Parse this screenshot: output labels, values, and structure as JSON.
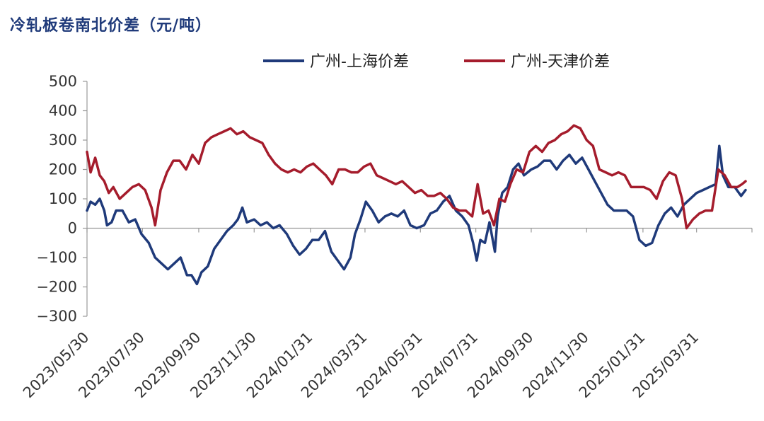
{
  "chart_data": {
    "type": "line",
    "title": "冷轧板卷南北价差（元/吨）",
    "xlabel": "",
    "ylabel": "",
    "ylim": [
      -300,
      500
    ],
    "yticks": [
      500,
      400,
      300,
      200,
      100,
      0,
      -100,
      -200,
      -300
    ],
    "x_start": "2023/05/30",
    "x_end": "2025/05/31",
    "xticks": [
      "2023/05/30",
      "2023/07/30",
      "2023/09/30",
      "2023/11/30",
      "2024/01/31",
      "2024/03/31",
      "2024/05/31",
      "2024/07/31",
      "2024/09/30",
      "2024/11/30",
      "2025/01/31",
      "2025/03/31"
    ],
    "grid": false,
    "legend_position": "top",
    "series": [
      {
        "name": "广州-上海价差",
        "color": "#1f3a7a",
        "points": [
          [
            "2023/05/30",
            60
          ],
          [
            "2023/06/03",
            90
          ],
          [
            "2023/06/08",
            80
          ],
          [
            "2023/06/13",
            100
          ],
          [
            "2023/06/18",
            60
          ],
          [
            "2023/06/21",
            10
          ],
          [
            "2023/06/26",
            20
          ],
          [
            "2023/07/01",
            60
          ],
          [
            "2023/07/08",
            60
          ],
          [
            "2023/07/15",
            20
          ],
          [
            "2023/07/22",
            30
          ],
          [
            "2023/07/29",
            -20
          ],
          [
            "2023/08/06",
            -50
          ],
          [
            "2023/08/13",
            -100
          ],
          [
            "2023/08/20",
            -120
          ],
          [
            "2023/08/27",
            -140
          ],
          [
            "2023/09/03",
            -120
          ],
          [
            "2023/09/10",
            -100
          ],
          [
            "2023/09/17",
            -160
          ],
          [
            "2023/09/22",
            -160
          ],
          [
            "2023/09/28",
            -190
          ],
          [
            "2023/10/03",
            -150
          ],
          [
            "2023/10/10",
            -130
          ],
          [
            "2023/10/17",
            -70
          ],
          [
            "2023/10/24",
            -40
          ],
          [
            "2023/10/31",
            -10
          ],
          [
            "2023/11/07",
            10
          ],
          [
            "2023/11/12",
            30
          ],
          [
            "2023/11/17",
            70
          ],
          [
            "2023/11/22",
            20
          ],
          [
            "2023/11/30",
            30
          ],
          [
            "2023/12/07",
            10
          ],
          [
            "2023/12/14",
            20
          ],
          [
            "2023/12/21",
            0
          ],
          [
            "2023/12/28",
            10
          ],
          [
            "2024/01/05",
            -20
          ],
          [
            "2024/01/12",
            -60
          ],
          [
            "2024/01/19",
            -90
          ],
          [
            "2024/01/26",
            -70
          ],
          [
            "2024/02/02",
            -40
          ],
          [
            "2024/02/09",
            -40
          ],
          [
            "2024/02/16",
            -10
          ],
          [
            "2024/02/23",
            -80
          ],
          [
            "2024/03/01",
            -110
          ],
          [
            "2024/03/08",
            -140
          ],
          [
            "2024/03/15",
            -100
          ],
          [
            "2024/03/20",
            -20
          ],
          [
            "2024/03/26",
            30
          ],
          [
            "2024/04/01",
            90
          ],
          [
            "2024/04/08",
            60
          ],
          [
            "2024/04/15",
            20
          ],
          [
            "2024/04/22",
            40
          ],
          [
            "2024/04/29",
            50
          ],
          [
            "2024/05/06",
            40
          ],
          [
            "2024/05/13",
            60
          ],
          [
            "2024/05/20",
            10
          ],
          [
            "2024/05/27",
            0
          ],
          [
            "2024/06/04",
            10
          ],
          [
            "2024/06/11",
            50
          ],
          [
            "2024/06/18",
            60
          ],
          [
            "2024/06/25",
            90
          ],
          [
            "2024/07/02",
            110
          ],
          [
            "2024/07/09",
            60
          ],
          [
            "2024/07/16",
            40
          ],
          [
            "2024/07/23",
            10
          ],
          [
            "2024/07/28",
            -50
          ],
          [
            "2024/08/01",
            -110
          ],
          [
            "2024/08/05",
            -40
          ],
          [
            "2024/08/10",
            -50
          ],
          [
            "2024/08/15",
            20
          ],
          [
            "2024/08/21",
            -80
          ],
          [
            "2024/08/24",
            40
          ],
          [
            "2024/08/29",
            120
          ],
          [
            "2024/09/04",
            140
          ],
          [
            "2024/09/10",
            200
          ],
          [
            "2024/09/16",
            220
          ],
          [
            "2024/09/22",
            180
          ],
          [
            "2024/09/30",
            200
          ],
          [
            "2024/10/07",
            210
          ],
          [
            "2024/10/14",
            230
          ],
          [
            "2024/10/21",
            230
          ],
          [
            "2024/10/28",
            200
          ],
          [
            "2024/11/04",
            230
          ],
          [
            "2024/11/11",
            250
          ],
          [
            "2024/11/18",
            220
          ],
          [
            "2024/11/25",
            240
          ],
          [
            "2024/12/02",
            200
          ],
          [
            "2024/12/09",
            160
          ],
          [
            "2024/12/16",
            120
          ],
          [
            "2024/12/23",
            80
          ],
          [
            "2024/12/30",
            60
          ],
          [
            "2025/01/06",
            60
          ],
          [
            "2025/01/13",
            60
          ],
          [
            "2025/01/20",
            40
          ],
          [
            "2025/01/27",
            -40
          ],
          [
            "2025/02/03",
            -60
          ],
          [
            "2025/02/10",
            -50
          ],
          [
            "2025/02/17",
            10
          ],
          [
            "2025/02/24",
            50
          ],
          [
            "2025/03/03",
            70
          ],
          [
            "2025/03/10",
            40
          ],
          [
            "2025/03/17",
            80
          ],
          [
            "2025/03/24",
            100
          ],
          [
            "2025/03/31",
            120
          ],
          [
            "2025/04/07",
            130
          ],
          [
            "2025/04/14",
            140
          ],
          [
            "2025/04/21",
            150
          ],
          [
            "2025/04/25",
            280
          ],
          [
            "2025/04/29",
            180
          ],
          [
            "2025/05/05",
            140
          ],
          [
            "2025/05/12",
            140
          ],
          [
            "2025/05/19",
            110
          ],
          [
            "2025/05/24",
            130
          ]
        ]
      },
      {
        "name": "广州-天津价差",
        "color": "#a51c2c",
        "points": [
          [
            "2023/05/30",
            260
          ],
          [
            "2023/06/03",
            190
          ],
          [
            "2023/06/08",
            240
          ],
          [
            "2023/06/13",
            180
          ],
          [
            "2023/06/18",
            160
          ],
          [
            "2023/06/23",
            120
          ],
          [
            "2023/06/28",
            140
          ],
          [
            "2023/07/05",
            100
          ],
          [
            "2023/07/12",
            120
          ],
          [
            "2023/07/19",
            140
          ],
          [
            "2023/07/26",
            150
          ],
          [
            "2023/08/02",
            130
          ],
          [
            "2023/08/09",
            70
          ],
          [
            "2023/08/13",
            10
          ],
          [
            "2023/08/19",
            130
          ],
          [
            "2023/08/26",
            190
          ],
          [
            "2023/09/02",
            230
          ],
          [
            "2023/09/09",
            230
          ],
          [
            "2023/09/16",
            200
          ],
          [
            "2023/09/23",
            250
          ],
          [
            "2023/09/30",
            220
          ],
          [
            "2023/10/07",
            290
          ],
          [
            "2023/10/14",
            310
          ],
          [
            "2023/10/21",
            320
          ],
          [
            "2023/10/28",
            330
          ],
          [
            "2023/11/04",
            340
          ],
          [
            "2023/11/11",
            320
          ],
          [
            "2023/11/18",
            330
          ],
          [
            "2023/11/25",
            310
          ],
          [
            "2023/12/02",
            300
          ],
          [
            "2023/12/09",
            290
          ],
          [
            "2023/12/16",
            250
          ],
          [
            "2023/12/23",
            220
          ],
          [
            "2023/12/30",
            200
          ],
          [
            "2024/01/06",
            190
          ],
          [
            "2024/01/13",
            200
          ],
          [
            "2024/01/20",
            190
          ],
          [
            "2024/01/27",
            210
          ],
          [
            "2024/02/03",
            220
          ],
          [
            "2024/02/10",
            200
          ],
          [
            "2024/02/17",
            180
          ],
          [
            "2024/02/24",
            150
          ],
          [
            "2024/03/02",
            200
          ],
          [
            "2024/03/09",
            200
          ],
          [
            "2024/03/16",
            190
          ],
          [
            "2024/03/23",
            190
          ],
          [
            "2024/03/30",
            210
          ],
          [
            "2024/04/06",
            220
          ],
          [
            "2024/04/13",
            180
          ],
          [
            "2024/04/20",
            170
          ],
          [
            "2024/04/27",
            160
          ],
          [
            "2024/05/04",
            150
          ],
          [
            "2024/05/11",
            160
          ],
          [
            "2024/05/18",
            140
          ],
          [
            "2024/05/25",
            120
          ],
          [
            "2024/06/01",
            130
          ],
          [
            "2024/06/08",
            110
          ],
          [
            "2024/06/15",
            110
          ],
          [
            "2024/06/22",
            120
          ],
          [
            "2024/06/29",
            100
          ],
          [
            "2024/07/06",
            70
          ],
          [
            "2024/07/13",
            60
          ],
          [
            "2024/07/20",
            60
          ],
          [
            "2024/07/27",
            40
          ],
          [
            "2024/08/02",
            150
          ],
          [
            "2024/08/08",
            50
          ],
          [
            "2024/08/14",
            60
          ],
          [
            "2024/08/20",
            10
          ],
          [
            "2024/08/26",
            100
          ],
          [
            "2024/09/01",
            90
          ],
          [
            "2024/09/07",
            150
          ],
          [
            "2024/09/14",
            200
          ],
          [
            "2024/09/21",
            190
          ],
          [
            "2024/09/28",
            260
          ],
          [
            "2024/10/05",
            280
          ],
          [
            "2024/10/12",
            260
          ],
          [
            "2024/10/19",
            290
          ],
          [
            "2024/10/26",
            300
          ],
          [
            "2024/11/02",
            320
          ],
          [
            "2024/11/09",
            330
          ],
          [
            "2024/11/16",
            350
          ],
          [
            "2024/11/23",
            340
          ],
          [
            "2024/11/30",
            300
          ],
          [
            "2024/12/07",
            280
          ],
          [
            "2024/12/14",
            200
          ],
          [
            "2024/12/21",
            190
          ],
          [
            "2024/12/28",
            180
          ],
          [
            "2025/01/04",
            190
          ],
          [
            "2025/01/11",
            180
          ],
          [
            "2025/01/18",
            140
          ],
          [
            "2025/01/25",
            140
          ],
          [
            "2025/02/01",
            140
          ],
          [
            "2025/02/08",
            130
          ],
          [
            "2025/02/15",
            100
          ],
          [
            "2025/02/22",
            160
          ],
          [
            "2025/03/01",
            190
          ],
          [
            "2025/03/08",
            180
          ],
          [
            "2025/03/15",
            100
          ],
          [
            "2025/03/20",
            0
          ],
          [
            "2025/03/27",
            30
          ],
          [
            "2025/04/03",
            50
          ],
          [
            "2025/04/10",
            60
          ],
          [
            "2025/04/17",
            60
          ],
          [
            "2025/04/24",
            200
          ],
          [
            "2025/05/01",
            180
          ],
          [
            "2025/05/08",
            140
          ],
          [
            "2025/05/15",
            140
          ],
          [
            "2025/05/20",
            150
          ],
          [
            "2025/05/24",
            160
          ]
        ]
      }
    ]
  }
}
